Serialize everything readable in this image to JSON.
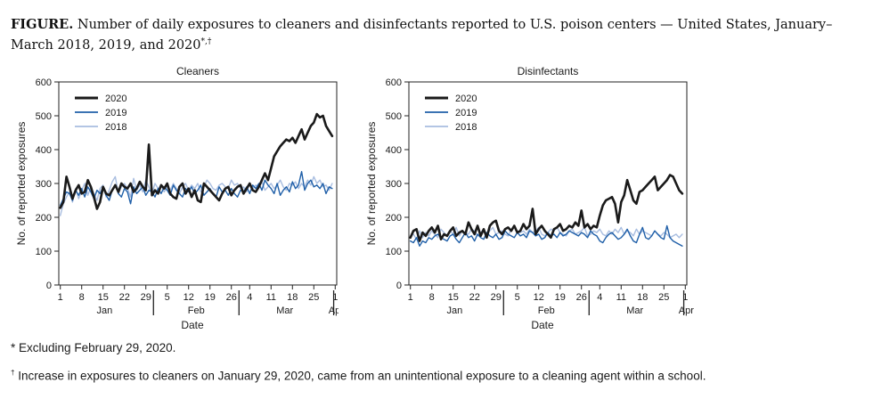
{
  "figure": {
    "lead": "FIGURE.",
    "title": "Number of daily exposures to cleaners and disinfectants reported to U.S. poison centers — United States, January–March 2018, 2019, and 2020",
    "title_marks": "*,†"
  },
  "footnotes": {
    "star_mark": "*",
    "star_text": "Excluding February 29, 2020.",
    "dagger_mark": "†",
    "dagger_text": "Increase in exposures to cleaners on January 29, 2020, came from an unintentional exposure to a cleaning agent within a school."
  },
  "colors": {
    "2020": "#1a1a1a",
    "2019": "#1f5fa8",
    "2018": "#a8bde0"
  },
  "chart_data": [
    {
      "type": "line",
      "title": "Cleaners",
      "xlabel": "Date",
      "ylabel": "No. of reported exposures",
      "ylim": [
        0,
        600
      ],
      "yticks": [
        0,
        100,
        200,
        300,
        400,
        500,
        600
      ],
      "xticks": [
        {
          "day": 1,
          "label": "1"
        },
        {
          "day": 8,
          "label": "8"
        },
        {
          "day": 15,
          "label": "15"
        },
        {
          "day": 22,
          "label": "22"
        },
        {
          "day": 29,
          "label": "29"
        },
        {
          "day": 36,
          "label": "5"
        },
        {
          "day": 43,
          "label": "12"
        },
        {
          "day": 50,
          "label": "19"
        },
        {
          "day": 57,
          "label": "26"
        },
        {
          "day": 63,
          "label": "4"
        },
        {
          "day": 70,
          "label": "11"
        },
        {
          "day": 77,
          "label": "18"
        },
        {
          "day": 84,
          "label": "25"
        },
        {
          "day": 91,
          "label": "1"
        }
      ],
      "months": [
        {
          "label": "Jan",
          "center": 15.5
        },
        {
          "label": "Feb",
          "center": 45.5
        },
        {
          "label": "Mar",
          "center": 74.5
        },
        {
          "label": "Apr",
          "center": 91.3
        }
      ],
      "month_boundaries": [
        31.5,
        59.5,
        90.5
      ],
      "legend": [
        "2020",
        "2019",
        "2018"
      ],
      "legend_position": "top-left",
      "series": [
        {
          "name": "2020",
          "values": [
            228,
            245,
            320,
            290,
            255,
            280,
            295,
            270,
            275,
            310,
            290,
            260,
            225,
            245,
            290,
            270,
            265,
            280,
            295,
            275,
            300,
            290,
            285,
            300,
            275,
            285,
            305,
            290,
            280,
            415,
            265,
            280,
            270,
            295,
            285,
            300,
            270,
            260,
            255,
            290,
            300,
            270,
            285,
            260,
            280,
            250,
            245,
            300,
            290,
            280,
            270,
            260,
            250,
            270,
            285,
            290,
            265,
            280,
            290,
            295,
            270,
            285,
            300,
            280,
            275,
            290,
            310,
            330,
            310,
            345,
            380,
            395,
            410,
            420,
            430,
            425,
            435,
            420,
            440,
            460,
            430,
            450,
            470,
            480,
            505,
            495,
            500,
            470,
            455,
            440
          ]
        },
        {
          "name": "2019",
          "values": [
            235,
            255,
            275,
            270,
            250,
            280,
            265,
            285,
            260,
            290,
            275,
            255,
            280,
            270,
            290,
            265,
            250,
            280,
            295,
            270,
            260,
            285,
            275,
            240,
            290,
            270,
            280,
            290,
            265,
            280,
            275,
            260,
            285,
            270,
            290,
            280,
            265,
            295,
            280,
            270,
            260,
            285,
            275,
            290,
            270,
            280,
            295,
            265,
            275,
            285,
            270,
            260,
            290,
            275,
            280,
            265,
            285,
            270,
            260,
            280,
            275,
            290,
            270,
            295,
            285,
            300,
            280,
            310,
            295,
            285,
            270,
            300,
            265,
            280,
            290,
            275,
            305,
            285,
            295,
            335,
            280,
            300,
            310,
            290,
            295,
            285,
            300,
            270,
            290,
            285
          ]
        },
        {
          "name": "2018",
          "values": [
            205,
            240,
            260,
            275,
            245,
            285,
            255,
            280,
            300,
            265,
            290,
            270,
            250,
            285,
            295,
            260,
            280,
            305,
            320,
            270,
            290,
            300,
            285,
            260,
            315,
            280,
            295,
            275,
            310,
            290,
            270,
            300,
            285,
            295,
            275,
            290,
            280,
            300,
            285,
            270,
            290,
            300,
            280,
            295,
            285,
            300,
            275,
            290,
            310,
            300,
            285,
            280,
            295,
            300,
            290,
            285,
            310,
            295,
            300,
            285,
            290,
            275,
            300,
            285,
            295,
            290,
            305,
            280,
            290,
            300,
            285,
            295,
            310,
            290,
            280,
            300,
            295,
            305,
            285,
            300,
            290,
            310,
            295,
            320,
            300,
            310,
            290,
            295,
            280,
            300
          ]
        }
      ]
    },
    {
      "type": "line",
      "title": "Disinfectants",
      "xlabel": "Date",
      "ylabel": "No. of reported exposures",
      "ylim": [
        0,
        600
      ],
      "yticks": [
        0,
        100,
        200,
        300,
        400,
        500,
        600
      ],
      "xticks": [
        {
          "day": 1,
          "label": "1"
        },
        {
          "day": 8,
          "label": "8"
        },
        {
          "day": 15,
          "label": "15"
        },
        {
          "day": 22,
          "label": "22"
        },
        {
          "day": 29,
          "label": "29"
        },
        {
          "day": 36,
          "label": "5"
        },
        {
          "day": 43,
          "label": "12"
        },
        {
          "day": 50,
          "label": "19"
        },
        {
          "day": 57,
          "label": "26"
        },
        {
          "day": 63,
          "label": "4"
        },
        {
          "day": 70,
          "label": "11"
        },
        {
          "day": 77,
          "label": "18"
        },
        {
          "day": 84,
          "label": "25"
        },
        {
          "day": 91,
          "label": "1"
        }
      ],
      "months": [
        {
          "label": "Jan",
          "center": 15.5
        },
        {
          "label": "Feb",
          "center": 45.5
        },
        {
          "label": "Mar",
          "center": 74.5
        },
        {
          "label": "Apr",
          "center": 91.3
        }
      ],
      "month_boundaries": [
        31.5,
        59.5,
        90.5
      ],
      "legend": [
        "2020",
        "2019",
        "2018"
      ],
      "legend_position": "top-left",
      "series": [
        {
          "name": "2020",
          "values": [
            140,
            160,
            165,
            130,
            155,
            145,
            160,
            170,
            155,
            175,
            135,
            150,
            145,
            160,
            170,
            145,
            155,
            160,
            150,
            185,
            165,
            150,
            175,
            145,
            165,
            140,
            175,
            185,
            190,
            160,
            150,
            165,
            170,
            160,
            175,
            155,
            160,
            180,
            165,
            175,
            225,
            150,
            165,
            175,
            160,
            150,
            140,
            165,
            170,
            180,
            160,
            165,
            175,
            170,
            185,
            175,
            220,
            170,
            180,
            165,
            175,
            170,
            205,
            235,
            250,
            255,
            260,
            240,
            185,
            245,
            265,
            310,
            280,
            250,
            240,
            275,
            280,
            290,
            300,
            310,
            320,
            280,
            290,
            300,
            310,
            325,
            320,
            300,
            280,
            270
          ]
        },
        {
          "name": "2019",
          "values": [
            130,
            125,
            140,
            115,
            130,
            125,
            140,
            135,
            145,
            150,
            140,
            135,
            130,
            145,
            150,
            135,
            125,
            140,
            155,
            140,
            145,
            130,
            150,
            140,
            135,
            155,
            145,
            140,
            150,
            135,
            140,
            160,
            150,
            145,
            140,
            155,
            145,
            150,
            140,
            160,
            155,
            145,
            150,
            135,
            140,
            155,
            145,
            150,
            140,
            155,
            145,
            150,
            160,
            155,
            150,
            145,
            155,
            150,
            140,
            160,
            150,
            145,
            130,
            125,
            140,
            150,
            155,
            145,
            135,
            140,
            150,
            165,
            145,
            130,
            125,
            150,
            170,
            140,
            135,
            145,
            160,
            150,
            140,
            135,
            175,
            140,
            130,
            125,
            120,
            115
          ]
        },
        {
          "name": "2018",
          "values": [
            145,
            150,
            135,
            160,
            140,
            155,
            145,
            160,
            150,
            140,
            165,
            155,
            145,
            160,
            150,
            170,
            145,
            160,
            155,
            150,
            165,
            160,
            145,
            155,
            165,
            150,
            160,
            170,
            150,
            155,
            160,
            150,
            145,
            165,
            170,
            160,
            155,
            160,
            150,
            165,
            155,
            160,
            170,
            150,
            145,
            155,
            165,
            160,
            170,
            155,
            150,
            145,
            160,
            165,
            150,
            155,
            160,
            170,
            145,
            150,
            160,
            155,
            165,
            150,
            145,
            160,
            150,
            165,
            155,
            170,
            150,
            160,
            155,
            145,
            165,
            150,
            160,
            155,
            150,
            145,
            160,
            150,
            145,
            155,
            150,
            140,
            145,
            150,
            140,
            150
          ]
        }
      ]
    }
  ]
}
